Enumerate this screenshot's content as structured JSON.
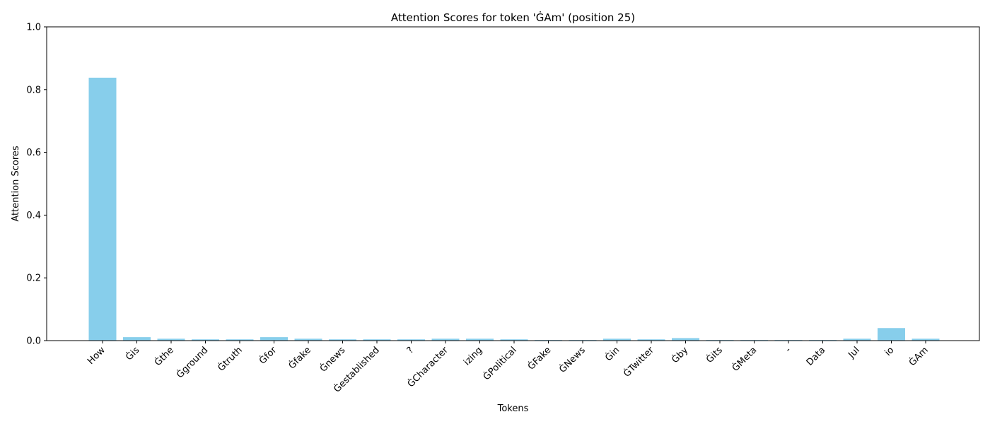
{
  "chart_data": {
    "type": "bar",
    "title": "Attention Scores for token 'ĠAm' (position 25)",
    "xlabel": "Tokens",
    "ylabel": "Attention Scores",
    "ylim": [
      0,
      1
    ],
    "yticks": [
      "0.0",
      "0.2",
      "0.4",
      "0.6",
      "0.8",
      "1.0"
    ],
    "ytick_values": [
      0,
      0.2,
      0.4,
      0.6,
      0.8,
      1.0
    ],
    "grid": false,
    "bar_color": "#87CEEB",
    "categories": [
      "How",
      "Ġis",
      "Ġthe",
      "Ġground",
      "Ġtruth",
      "Ġfor",
      "Ġfake",
      "Ġnews",
      "Ġestablished",
      "?",
      "ĠCharacter",
      "izing",
      "ĠPolitical",
      "ĠFake",
      "ĠNews",
      "Ġin",
      "ĠTwitter",
      "Ġby",
      "Ġits",
      "ĠMeta",
      "-",
      "Data",
      "Jul",
      "io",
      "ĠAm"
    ],
    "values": [
      0.838,
      0.011,
      0.006,
      0.004,
      0.004,
      0.011,
      0.006,
      0.004,
      0.004,
      0.004,
      0.006,
      0.006,
      0.004,
      0.002,
      0.002,
      0.006,
      0.004,
      0.008,
      0.002,
      0.002,
      0.002,
      0.002,
      0.006,
      0.04,
      0.006
    ]
  }
}
